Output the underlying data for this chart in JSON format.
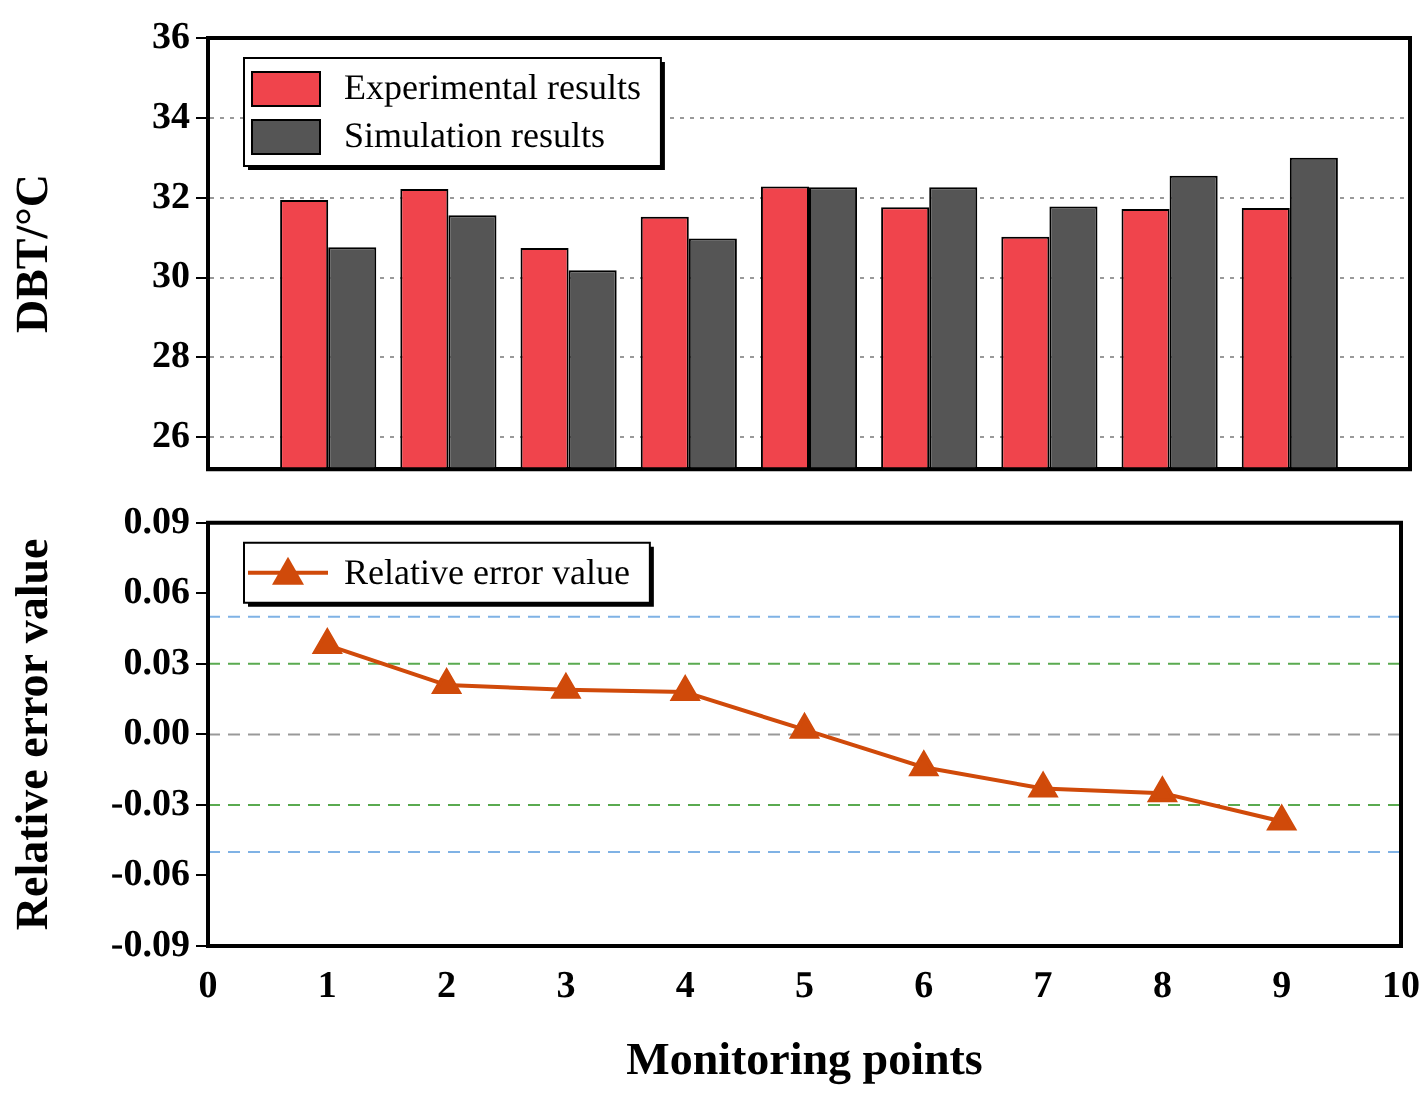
{
  "chart_data": [
    {
      "type": "bar",
      "ylabel": "DBT/°C",
      "x": [
        1,
        2,
        3,
        4,
        5,
        6,
        7,
        8,
        9
      ],
      "xlim": [
        0,
        10
      ],
      "xticks": [
        0,
        1,
        2,
        3,
        4,
        5,
        6,
        7,
        8,
        9,
        10
      ],
      "ylim": [
        25.2,
        36
      ],
      "yticks": [
        26,
        28,
        30,
        32,
        34,
        36
      ],
      "grid": "y",
      "legend": "top left",
      "tick_labels": "y",
      "series": [
        {
          "name": "Experimental results",
          "color": "#f0444c",
          "values": [
            31.94,
            32.22,
            30.74,
            31.52,
            32.28,
            31.76,
            31.02,
            31.72,
            31.74
          ]
        },
        {
          "name": "Simulation results",
          "color": "#555555",
          "values": [
            30.76,
            31.56,
            30.18,
            30.98,
            32.26,
            32.26,
            31.78,
            32.55,
            33.0
          ]
        }
      ]
    },
    {
      "type": "line",
      "xlabel": "Monitoring points",
      "ylabel": "Relative error value",
      "x": [
        1,
        2,
        3,
        4,
        5,
        6,
        7,
        8,
        9
      ],
      "xlim": [
        0,
        10
      ],
      "xticks": [
        0,
        1,
        2,
        3,
        4,
        5,
        6,
        7,
        8,
        9,
        10
      ],
      "ylim": [
        -0.09,
        0.09
      ],
      "yticks": [
        {
          "value": -0.09,
          "label": "-0.09"
        },
        {
          "value": -0.06,
          "label": "-0.06"
        },
        {
          "value": -0.03,
          "label": "-0.03"
        },
        {
          "value": 0,
          "label": "0.00"
        },
        {
          "value": 0.03,
          "label": "0.03"
        },
        {
          "value": 0.06,
          "label": "0.06"
        },
        {
          "value": 0.09,
          "label": "0.09"
        }
      ],
      "legend": "top left",
      "marker": "triangle",
      "line_style": "solid",
      "series": [
        {
          "name": "Relative error value",
          "color": "#d04a0a",
          "values": [
            0.038,
            0.021,
            0.019,
            0.018,
            0.002,
            -0.014,
            -0.023,
            -0.025,
            -0.037
          ]
        }
      ],
      "ref_lines": [
        {
          "axis": "y",
          "value": 0.05,
          "color": "#7fb2e5",
          "line_style": "dashed"
        },
        {
          "axis": "y",
          "value": 0.03,
          "color": "#5aaa50",
          "line_style": "dashed"
        },
        {
          "axis": "y",
          "value": 0,
          "color": "#999999",
          "line_style": "dashed"
        },
        {
          "axis": "y",
          "value": -0.03,
          "color": "#5aaa50",
          "line_style": "dashed"
        },
        {
          "axis": "y",
          "value": -0.05,
          "color": "#7fb2e5",
          "line_style": "dashed"
        }
      ]
    }
  ]
}
